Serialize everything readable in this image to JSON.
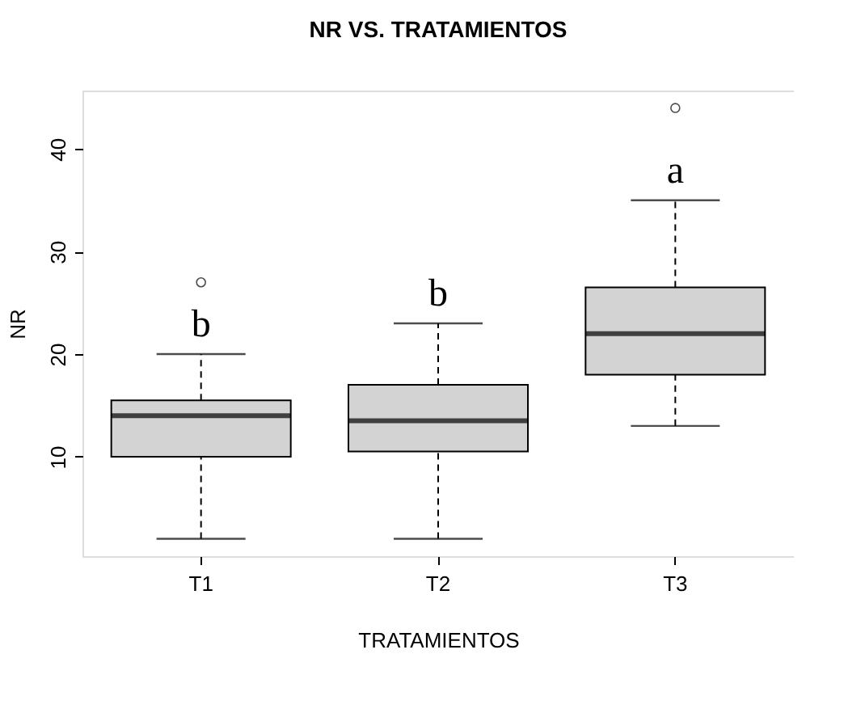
{
  "chart_data": {
    "type": "box",
    "title": "NR VS. TRATAMIENTOS",
    "xlabel": "TRATAMIENTOS",
    "ylabel": "NR",
    "categories": [
      "T1",
      "T2",
      "T3"
    ],
    "boxes": [
      {
        "low": 2,
        "q1": 10,
        "median": 14,
        "q3": 15.5,
        "high": 20,
        "outliers": [
          27
        ]
      },
      {
        "low": 2,
        "q1": 10.5,
        "median": 13.5,
        "q3": 17,
        "high": 23
      },
      {
        "low": 13,
        "q1": 18,
        "median": 22,
        "q3": 26.5,
        "high": 35,
        "outliers": [
          44
        ]
      }
    ],
    "color": "#d3d3d3",
    "ylim": [
      0.3,
      45.7
    ],
    "yticks": [
      10,
      20,
      30,
      40
    ],
    "grid": false,
    "annotations": [
      "b",
      "b",
      "a"
    ]
  }
}
